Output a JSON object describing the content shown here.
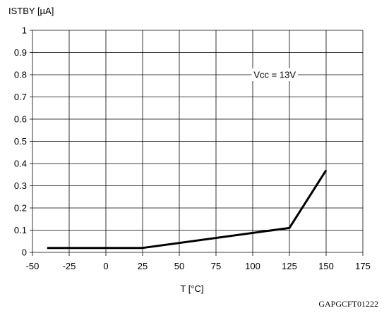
{
  "chart_data": {
    "type": "line",
    "ylabel": "ISTBY [µA]",
    "xlabel": "T [°C]",
    "xlim": [
      -50,
      175
    ],
    "ylim": [
      0,
      1
    ],
    "xticks": [
      -50,
      -25,
      0,
      25,
      50,
      75,
      100,
      125,
      150,
      175
    ],
    "yticks": [
      0,
      0.1,
      0.2,
      0.3,
      0.4,
      0.5,
      0.6,
      0.7,
      0.8,
      0.9,
      1
    ],
    "grid": true,
    "series": [
      {
        "x": [
          -40,
          25,
          125,
          150
        ],
        "y": [
          0.02,
          0.02,
          0.11,
          0.37
        ],
        "color": "#000000"
      }
    ],
    "annotations": [
      {
        "text": "Vcc = 13V",
        "x": 115,
        "y": 0.8
      }
    ],
    "code": "GAPGCFT01222"
  }
}
